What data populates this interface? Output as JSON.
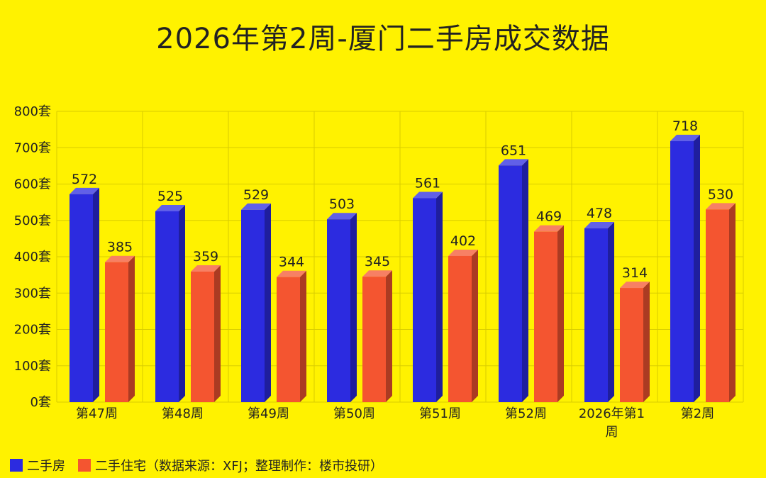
{
  "chart_data": {
    "type": "bar",
    "title": "2026年第2周-厦门二手房成交数据",
    "categories": [
      [
        "第47周"
      ],
      [
        "第48周"
      ],
      [
        "第49周"
      ],
      [
        "第50周"
      ],
      [
        "第51周"
      ],
      [
        "第52周"
      ],
      [
        "2026年第1",
        "周"
      ],
      [
        "第2周"
      ]
    ],
    "series": [
      {
        "name": "二手房",
        "values": [
          572,
          525,
          529,
          503,
          561,
          651,
          478,
          718
        ],
        "color": "#2C2BE0"
      },
      {
        "name": "二手住宅（数据来源：XFJ；整理制作：楼市投研）",
        "values": [
          385,
          359,
          344,
          345,
          402,
          469,
          314,
          530
        ],
        "color": "#F45530"
      }
    ],
    "y_ticks": [
      "0套",
      "100套",
      "200套",
      "300套",
      "400套",
      "500套",
      "600套",
      "700套",
      "800套"
    ],
    "ylim": [
      0,
      800
    ],
    "grid": true,
    "legend_position": "bottom-left",
    "background": "#FFF200"
  }
}
